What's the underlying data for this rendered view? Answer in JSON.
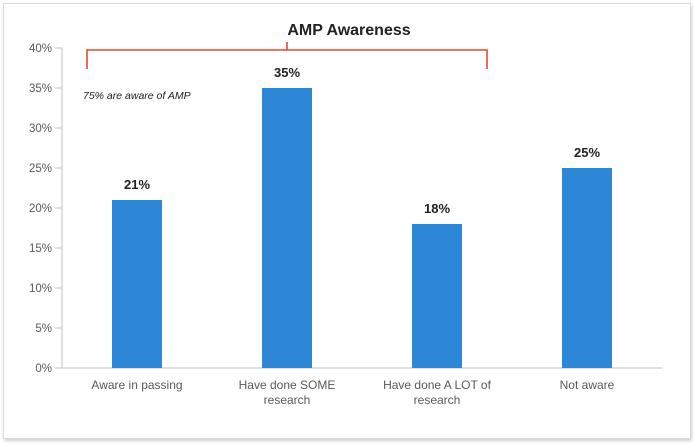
{
  "chart_data": {
    "type": "bar",
    "title": "AMP Awareness",
    "categories": [
      [
        "Aware in passing"
      ],
      [
        "Have done SOME",
        "research"
      ],
      [
        "Have done A LOT of",
        "research"
      ],
      [
        "Not aware"
      ]
    ],
    "values": [
      21,
      35,
      18,
      25
    ],
    "value_labels": [
      "21%",
      "35%",
      "18%",
      "25%"
    ],
    "ylim": [
      0,
      40
    ],
    "yticks": [
      0,
      5,
      10,
      15,
      20,
      25,
      30,
      35,
      40
    ],
    "ytick_labels": [
      "0%",
      "5%",
      "10%",
      "15%",
      "20%",
      "25%",
      "30%",
      "35%",
      "40%"
    ],
    "xlabel": "",
    "ylabel": "",
    "grid": false,
    "annotation": {
      "text": "75% are aware of AMP",
      "spans_categories": [
        0,
        2
      ]
    },
    "colors": {
      "bar": "#2e86d6",
      "bracket": "#e5472c",
      "axis": "#bfbfbf"
    }
  }
}
